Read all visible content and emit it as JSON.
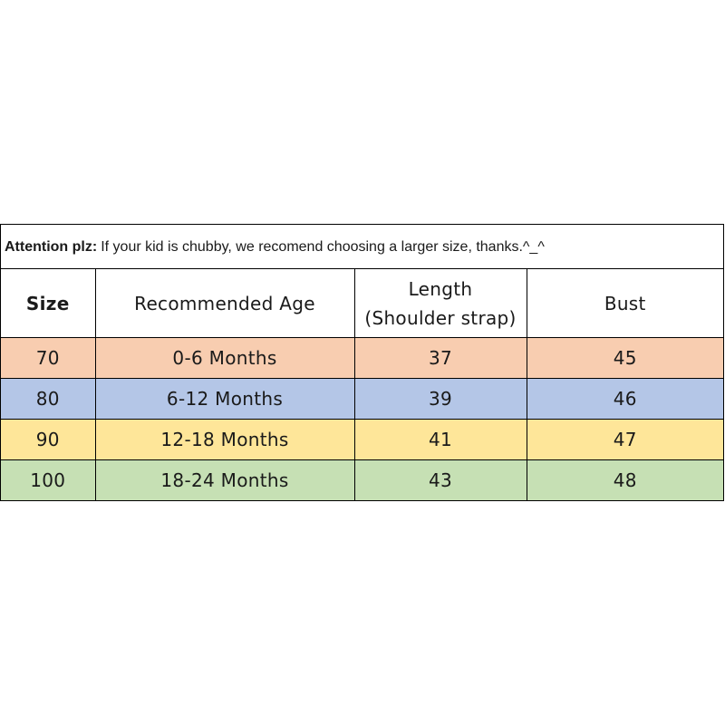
{
  "notice": {
    "lead": "Attention plz:",
    "text": "If your kid is chubby, we recomend choosing a larger size, thanks.^_^"
  },
  "headers": {
    "size": "Size",
    "age": "Recommended Age",
    "length_line1": "Length",
    "length_line2": "(Shoulder strap)",
    "bust": "Bust"
  },
  "rows": [
    {
      "size": "70",
      "age": "0-6 Months",
      "length": "37",
      "bust": "45",
      "color": "#f8cdb0"
    },
    {
      "size": "80",
      "age": "6-12 Months",
      "length": "39",
      "bust": "46",
      "color": "#b4c6e7"
    },
    {
      "size": "90",
      "age": "12-18 Months",
      "length": "41",
      "bust": "47",
      "color": "#fee699"
    },
    {
      "size": "100",
      "age": "18-24 Months",
      "length": "43",
      "bust": "48",
      "color": "#c6e0b4"
    }
  ]
}
